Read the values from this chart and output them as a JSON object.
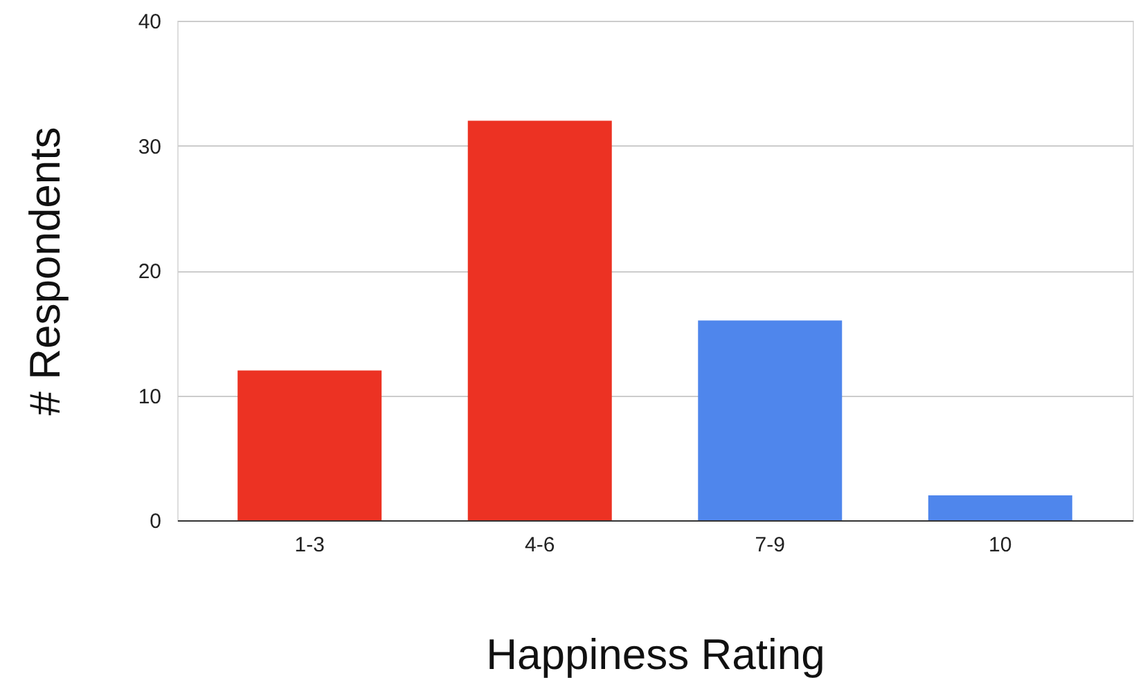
{
  "chart_data": {
    "type": "bar",
    "xlabel": "Happiness Rating",
    "ylabel": "# Respondents",
    "categories": [
      "1-3",
      "4-6",
      "7-9",
      "10"
    ],
    "values": [
      12,
      32,
      16,
      2
    ],
    "colors": [
      "#ec3223",
      "#ec3223",
      "#4f86ec",
      "#4f86ec"
    ],
    "ylim": [
      0,
      40
    ],
    "yticks": [
      0,
      10,
      20,
      30,
      40
    ],
    "grid": "y"
  }
}
